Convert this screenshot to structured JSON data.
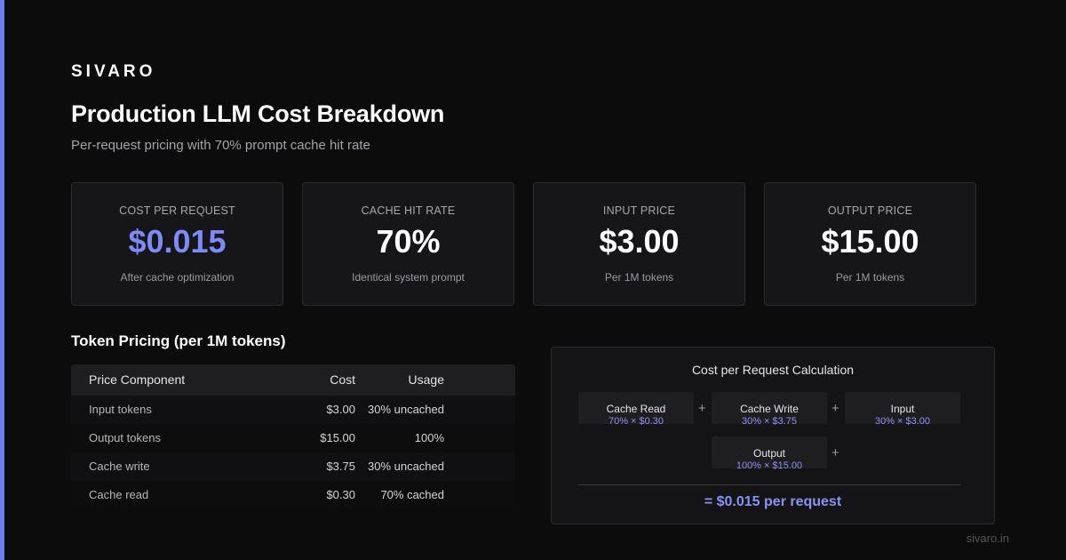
{
  "brand": "SIVARO",
  "header": {
    "title": "Production LLM Cost Breakdown",
    "subtitle": "Per-request pricing with 70% prompt cache hit rate"
  },
  "metrics": [
    {
      "label": "COST PER REQUEST",
      "value": "$0.015",
      "note": "After cache optimization"
    },
    {
      "label": "CACHE HIT RATE",
      "value": "70%",
      "note": "Identical system prompt"
    },
    {
      "label": "INPUT PRICE",
      "value": "$3.00",
      "note": "Per 1M tokens"
    },
    {
      "label": "OUTPUT PRICE",
      "value": "$15.00",
      "note": "Per 1M tokens"
    }
  ],
  "pricing": {
    "title": "Token Pricing (per 1M tokens)",
    "columns": [
      "Price Component",
      "Cost",
      "Usage"
    ],
    "rows": [
      [
        "Input tokens",
        "$3.00",
        "30% uncached"
      ],
      [
        "Output tokens",
        "$15.00",
        "100%"
      ],
      [
        "Cache write",
        "$3.75",
        "30% uncached"
      ],
      [
        "Cache read",
        "$0.30",
        "70% cached"
      ]
    ]
  },
  "calculation": {
    "title": "Cost per Request Calculation",
    "terms": [
      {
        "label": "Cache Read",
        "formula": "70% × $0.30"
      },
      {
        "label": "Cache Write",
        "formula": "30% × $3.75"
      },
      {
        "label": "Input",
        "formula": "30% × $3.00"
      },
      {
        "label": "Output",
        "formula": "100% × $15.00"
      }
    ],
    "operator": "+",
    "total": "= $0.015 per request"
  },
  "footer": "sivaro.in",
  "colors": {
    "accent": "#7f89f7",
    "background": "#0c0c0d",
    "card": "#161618"
  }
}
